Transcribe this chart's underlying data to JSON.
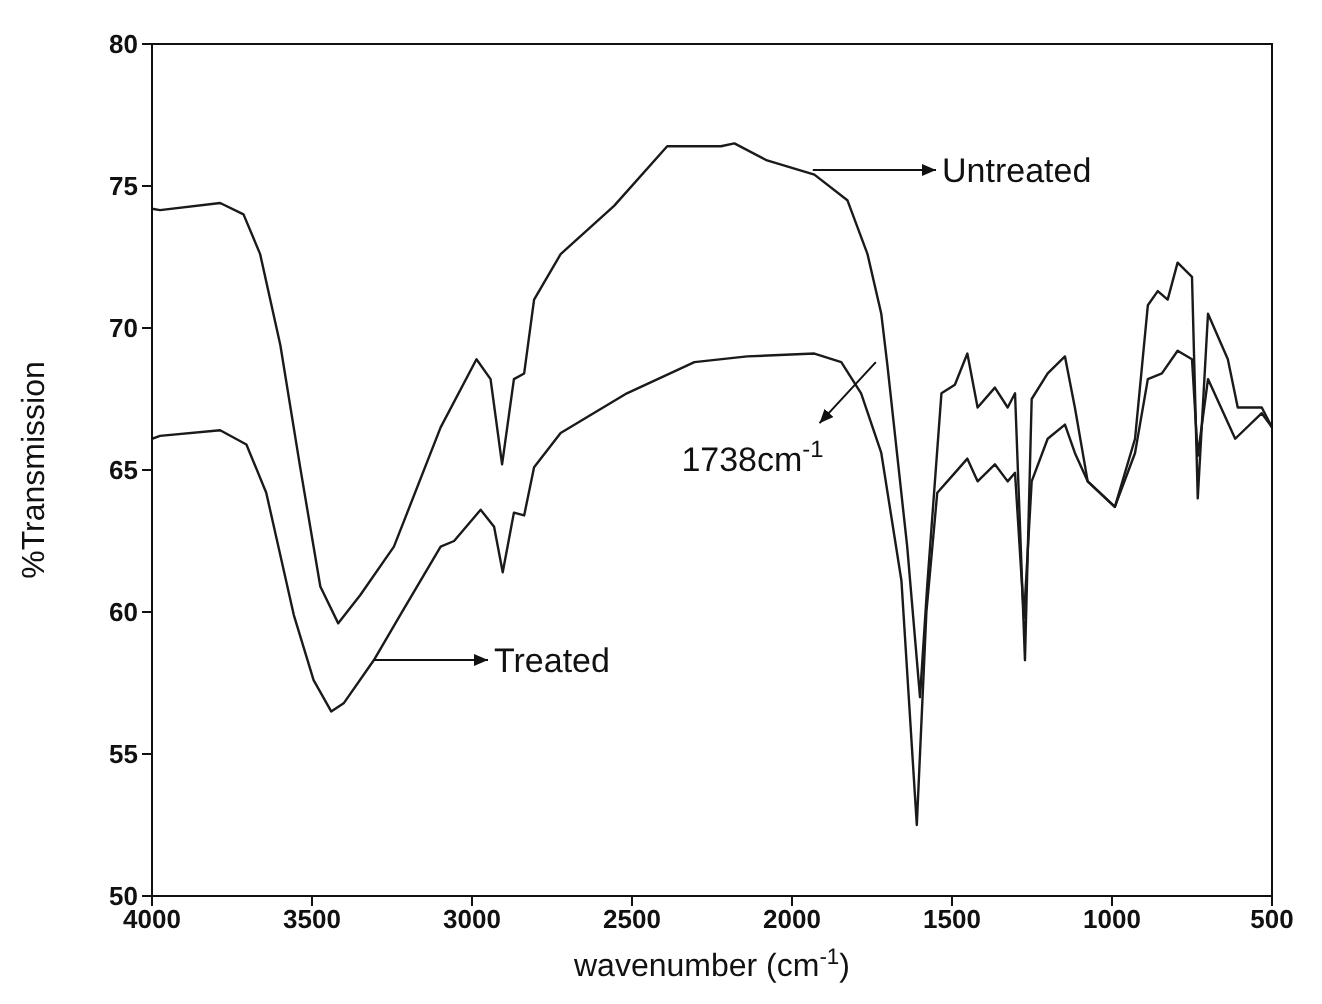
{
  "chart_data": {
    "type": "line",
    "xlabel": "wavenumber (cm$^{-1}$)",
    "ylabel": "%Transmission",
    "xlim": [
      4000,
      500
    ],
    "xticks": [
      4000,
      3500,
      3000,
      2500,
      2000,
      1500,
      1000,
      500
    ],
    "ylim": [
      50,
      80
    ],
    "yticks": [
      50,
      55,
      60,
      65,
      70,
      75,
      80
    ],
    "grid": false,
    "legend": "center",
    "marker": "none",
    "line_style": "solid",
    "annotations": [
      {
        "text": "1738cm$^{-1}$",
        "x": 1738,
        "y": 68.8
      }
    ],
    "series": [
      {
        "name": "Untreated",
        "color": "#1a1a1a",
        "x": [
          4000,
          3975,
          3787,
          3714,
          3662,
          3599,
          3537,
          3474,
          3418,
          3349,
          3244,
          3098,
          2986,
          2942,
          2906,
          2869,
          2837,
          2806,
          2723,
          2556,
          2390,
          2347,
          2222,
          2180,
          2078,
          1930,
          1827,
          1764,
          1721,
          1702,
          1640,
          1600,
          1577,
          1533,
          1491,
          1452,
          1420,
          1366,
          1326,
          1303,
          1272,
          1251,
          1201,
          1147,
          1116,
          1076,
          991,
          928,
          888,
          857,
          826,
          795,
          750,
          732,
          700,
          638,
          607,
          532,
          500
        ],
        "values": [
          74.2,
          74.15,
          74.4,
          74.0,
          72.6,
          69.4,
          65.1,
          60.9,
          59.6,
          60.6,
          62.3,
          66.5,
          68.9,
          68.2,
          65.2,
          68.2,
          68.4,
          71.0,
          72.6,
          74.3,
          76.4,
          76.4,
          76.4,
          76.5,
          75.9,
          75.4,
          74.5,
          72.6,
          70.5,
          68.7,
          62.3,
          57.0,
          61.0,
          67.7,
          68.0,
          69.1,
          67.2,
          67.9,
          67.2,
          67.7,
          58.3,
          67.5,
          68.4,
          69.0,
          67.2,
          64.6,
          63.7,
          66.1,
          70.8,
          71.3,
          71.0,
          72.3,
          71.8,
          64.0,
          70.5,
          68.9,
          67.2,
          67.2,
          66.5
        ]
      },
      {
        "name": "Treated",
        "color": "#1a1a1a",
        "x": [
          4000,
          3975,
          3787,
          3705,
          3643,
          3557,
          3495,
          3440,
          3400,
          3307,
          3224,
          3098,
          3056,
          2973,
          2931,
          2904,
          2869,
          2837,
          2806,
          2723,
          2516,
          2305,
          2140,
          1930,
          1846,
          1784,
          1721,
          1658,
          1610,
          1580,
          1546,
          1491,
          1452,
          1420,
          1366,
          1326,
          1303,
          1275,
          1251,
          1201,
          1147,
          1116,
          1076,
          991,
          928,
          888,
          844,
          795,
          750,
          732,
          700,
          615,
          532,
          500
        ],
        "values": [
          66.1,
          66.2,
          66.4,
          65.9,
          64.2,
          59.9,
          57.6,
          56.5,
          56.8,
          58.3,
          59.9,
          62.3,
          62.5,
          63.6,
          63.0,
          61.4,
          63.5,
          63.4,
          65.1,
          66.3,
          67.7,
          68.8,
          69.0,
          69.1,
          68.8,
          67.7,
          65.6,
          61.1,
          52.5,
          60.0,
          64.2,
          64.9,
          65.4,
          64.6,
          65.2,
          64.6,
          64.9,
          59.8,
          64.6,
          66.1,
          66.6,
          65.6,
          64.6,
          63.7,
          65.6,
          68.2,
          68.4,
          69.2,
          68.9,
          65.5,
          68.2,
          66.1,
          67.0,
          66.5
        ]
      }
    ]
  }
}
